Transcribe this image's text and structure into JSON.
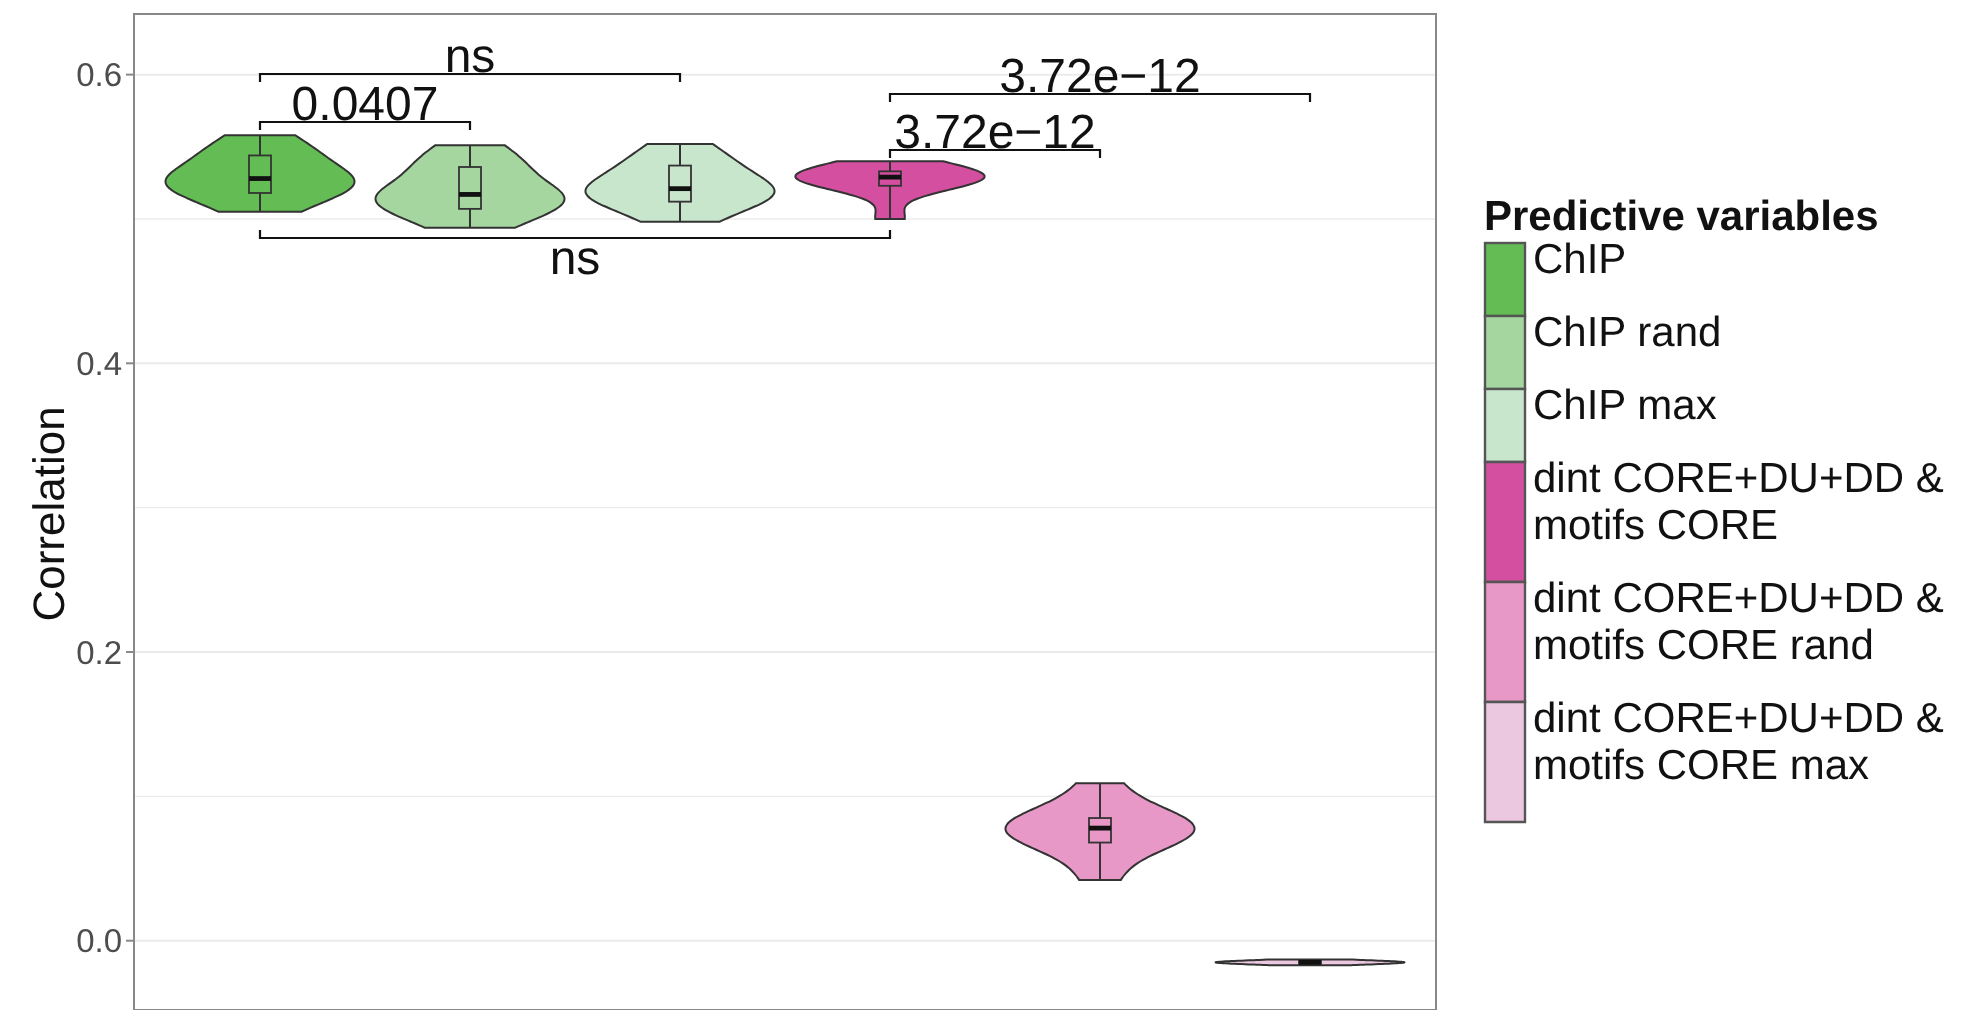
{
  "chart_data": {
    "type": "box",
    "ylabel": "Correlation",
    "legend_title": "Predictive variables",
    "legend": "right",
    "grid": "y",
    "tick_labels": "y",
    "categories": [
      null,
      null,
      null,
      null,
      null,
      null
    ],
    "ylim": [
      -0.048,
      0.642
    ],
    "yticks": [
      {
        "value": 0,
        "label": "0.0"
      },
      {
        "value": 0.1,
        "label": null
      },
      0.2,
      {
        "value": 0.3,
        "label": null
      },
      0.4,
      {
        "value": 0.5,
        "label": null
      },
      0.6
    ],
    "series": [
      {
        "name": "ChIP",
        "color": "#64bc55",
        "boxes": [
          {
            "low": 0.505,
            "q1": 0.518,
            "median": 0.528,
            "q3": 0.544,
            "high": 0.558
          },
          null,
          null,
          null,
          null,
          null
        ]
      },
      {
        "name": "ChIP rand",
        "color": "#a6d6a0",
        "boxes": [
          null,
          {
            "low": 0.494,
            "q1": 0.507,
            "median": 0.517,
            "q3": 0.536,
            "high": 0.551
          },
          null,
          null,
          null,
          null
        ]
      },
      {
        "name": "ChIP max",
        "color": "#c8e6cc",
        "boxes": [
          null,
          null,
          {
            "low": 0.498,
            "q1": 0.512,
            "median": 0.521,
            "q3": 0.537,
            "high": 0.552
          },
          null,
          null,
          null
        ]
      },
      {
        "name": "dint CORE+DU+DD & motifs CORE",
        "color": "#d44fa0",
        "boxes": [
          null,
          null,
          null,
          {
            "low": 0.5,
            "q1": 0.523,
            "median": 0.529,
            "q3": 0.533,
            "high": 0.54
          },
          null,
          null
        ]
      },
      {
        "name": "dint CORE+DU+DD & motifs CORE rand",
        "color": "#e898c6",
        "boxes": [
          null,
          null,
          null,
          null,
          {
            "low": 0.042,
            "q1": 0.068,
            "median": 0.078,
            "q3": 0.085,
            "high": 0.109
          },
          null
        ]
      },
      {
        "name": "dint CORE+DU+DD & motifs CORE max",
        "color": "#ecc7e0",
        "boxes": [
          null,
          null,
          null,
          null,
          null,
          {
            "low": -0.017,
            "q1": -0.016,
            "median": -0.015,
            "q3": -0.014,
            "high": -0.013
          }
        ]
      }
    ],
    "annotations": [
      "ns",
      "0.0407",
      "3.72e−12",
      "3.72e−12",
      "ns"
    ]
  }
}
